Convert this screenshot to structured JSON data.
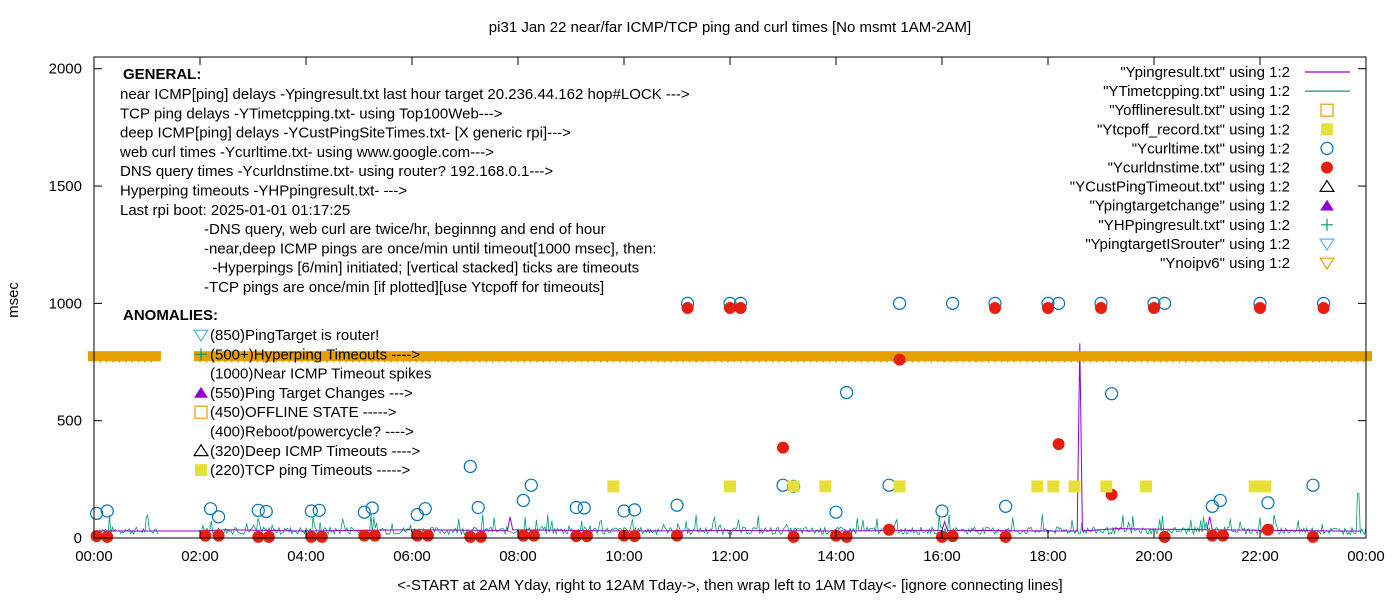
{
  "chart_data": {
    "type": "scatter",
    "title": "pi31 Jan 22  near/far ICMP/TCP ping and curl times [No msmt 1AM-2AM]",
    "xlabel": "<-START at 2AM Yday, right to 12AM Tday->, then wrap left to 1AM Tday<- [ignore connecting lines]",
    "ylabel": "msec",
    "xlim": [
      0,
      24
    ],
    "ylim": [
      0,
      2050
    ],
    "x_ticks": [
      "00:00",
      "02:00",
      "04:00",
      "06:00",
      "08:00",
      "10:00",
      "12:00",
      "14:00",
      "16:00",
      "18:00",
      "20:00",
      "22:00",
      "00:00"
    ],
    "y_ticks": [
      0,
      500,
      1000,
      1500,
      2000
    ],
    "legend_position": "top-right",
    "legend": [
      {
        "label": "\"Ypingresult.txt\" using 1:2",
        "kind": "line",
        "color": "#9400d3"
      },
      {
        "label": "\"YTimetcpping.txt\" using 1:2",
        "kind": "line",
        "color": "#009e73"
      },
      {
        "label": "\"Yofflineresult.txt\" using 1:2",
        "kind": "open-square",
        "color": "#e69f00"
      },
      {
        "label": "\"Ytcpoff_record.txt\" using 1:2",
        "kind": "filled-square",
        "color": "#e8e03a"
      },
      {
        "label": "\"Ycurltime.txt\" using 1:2",
        "kind": "open-circle",
        "color": "#0072b2"
      },
      {
        "label": "\"Ycurldnstime.txt\" using 1:2",
        "kind": "filled-circle",
        "color": "#e51e10"
      },
      {
        "label": "\"YCustPingTimeout.txt\" using 1:2",
        "kind": "open-triangle",
        "color": "#000000"
      },
      {
        "label": "\"Ypingtargetchange\" using 1:2",
        "kind": "filled-triangle",
        "color": "#9400d3"
      },
      {
        "label": "\"YHPpingresult.txt\" using 1:2",
        "kind": "plus",
        "color": "#009e73"
      },
      {
        "label": "\"YpingtargetISrouter\" using 1:2",
        "kind": "open-down-triangle",
        "color": "#56b4e9"
      },
      {
        "label": "\"Ynoipv6\" using 1:2",
        "kind": "open-down-triangle",
        "color": "#e69f00"
      }
    ],
    "annotations": {
      "general_header": "GENERAL:",
      "general_lines": [
        "near ICMP[ping] delays -Ypingresult.txt last hour target 20.236.44.162 hop#LOCK --->",
        "TCP ping delays -YTimetcpping.txt- using Top100Web--->",
        "deep ICMP[ping] delays -YCustPingSiteTimes.txt- [X generic rpi]--->",
        "web curl times -Ycurltime.txt- using www.google.com--->",
        "DNS query times -Ycurldnstime.txt- using router? 192.168.0.1--->",
        "Hyperping timeouts -YHPpingresult.txt- --->",
        "Last rpi boot: 2025-01-01 01:17:25"
      ],
      "general_notes": [
        "-DNS query, web curl are twice/hr, beginnng and end of hour",
        "-near,deep ICMP pings are once/min until timeout[1000 msec], then:",
        "  -Hyperpings [6/min] initiated; [vertical stacked] ticks are timeouts",
        "-TCP pings are once/min [if plotted][use Ytcpoff for timeouts]"
      ],
      "anomalies_header": "ANOMALIES:",
      "anomalies": [
        {
          "text": "(850)PingTarget is router!",
          "marker": "open-down-triangle",
          "color": "#56b4e9"
        },
        {
          "text": "(500+)Hyperping Timeouts ---->",
          "marker": "plus",
          "color": "#009e73"
        },
        {
          "text": "(1000)Near ICMP Timeout spikes",
          "marker": "none",
          "color": "#000000"
        },
        {
          "text": "(550)Ping Target Changes --->",
          "marker": "filled-triangle",
          "color": "#9400d3"
        },
        {
          "text": "(450)OFFLINE STATE ----->",
          "marker": "open-square",
          "color": "#e69f00"
        },
        {
          "text": "(400)Reboot/powercycle? ---->",
          "marker": "none",
          "color": "#000000"
        },
        {
          "text": "(320)Deep ICMP Timeouts ---->",
          "marker": "open-triangle",
          "color": "#000000"
        },
        {
          "text": "(220)TCP ping Timeouts ----->",
          "marker": "filled-square",
          "color": "#e8e03a"
        }
      ]
    },
    "series": [
      {
        "name": "\"Ycurltime.txt\" using 1:2",
        "marker": "open-circle",
        "color": "#0072b2",
        "points": [
          [
            0.05,
            105
          ],
          [
            0.25,
            115
          ],
          [
            2.2,
            125
          ],
          [
            2.35,
            90
          ],
          [
            3.1,
            118
          ],
          [
            3.25,
            113
          ],
          [
            4.1,
            115
          ],
          [
            4.25,
            118
          ],
          [
            5.1,
            110
          ],
          [
            5.25,
            128
          ],
          [
            6.1,
            100
          ],
          [
            6.25,
            125
          ],
          [
            7.1,
            305
          ],
          [
            7.25,
            130
          ],
          [
            8.1,
            160
          ],
          [
            8.25,
            225
          ],
          [
            9.1,
            130
          ],
          [
            9.25,
            128
          ],
          [
            10.0,
            115
          ],
          [
            10.2,
            120
          ],
          [
            11.0,
            140
          ],
          [
            11.2,
            1000
          ],
          [
            12.0,
            1000
          ],
          [
            12.2,
            1000
          ],
          [
            13.0,
            225
          ],
          [
            13.2,
            220
          ],
          [
            14.0,
            110
          ],
          [
            14.2,
            620
          ],
          [
            15.0,
            225
          ],
          [
            15.2,
            1000
          ],
          [
            16.0,
            115
          ],
          [
            16.2,
            1000
          ],
          [
            17.0,
            1000
          ],
          [
            17.2,
            135
          ],
          [
            18.0,
            1000
          ],
          [
            18.2,
            1000
          ],
          [
            19.0,
            1000
          ],
          [
            19.2,
            615
          ],
          [
            20.0,
            1000
          ],
          [
            20.2,
            1000
          ],
          [
            21.1,
            135
          ],
          [
            21.25,
            160
          ],
          [
            22.0,
            1000
          ],
          [
            22.15,
            150
          ],
          [
            23.0,
            225
          ],
          [
            23.2,
            1000
          ]
        ]
      },
      {
        "name": "\"Ycurldnstime.txt\" using 1:2",
        "marker": "filled-circle",
        "color": "#e51e10",
        "points": [
          [
            0.05,
            8
          ],
          [
            0.25,
            5
          ],
          [
            2.1,
            10
          ],
          [
            2.35,
            10
          ],
          [
            3.1,
            5
          ],
          [
            3.3,
            5
          ],
          [
            4.1,
            5
          ],
          [
            4.3,
            5
          ],
          [
            5.1,
            10
          ],
          [
            5.3,
            10
          ],
          [
            6.1,
            10
          ],
          [
            6.3,
            10
          ],
          [
            7.1,
            5
          ],
          [
            7.3,
            5
          ],
          [
            8.1,
            10
          ],
          [
            8.3,
            10
          ],
          [
            9.1,
            8
          ],
          [
            9.3,
            8
          ],
          [
            10.0,
            10
          ],
          [
            10.2,
            8
          ],
          [
            11.0,
            10
          ],
          [
            11.2,
            980
          ],
          [
            12.0,
            980
          ],
          [
            12.2,
            980
          ],
          [
            13.0,
            385
          ],
          [
            13.2,
            5
          ],
          [
            14.0,
            10
          ],
          [
            14.2,
            5
          ],
          [
            15.0,
            35
          ],
          [
            15.2,
            760
          ],
          [
            16.0,
            5
          ],
          [
            16.2,
            8
          ],
          [
            17.0,
            980
          ],
          [
            17.2,
            5
          ],
          [
            18.0,
            980
          ],
          [
            18.2,
            400
          ],
          [
            19.0,
            980
          ],
          [
            19.2,
            185
          ],
          [
            20.0,
            980
          ],
          [
            20.2,
            5
          ],
          [
            21.1,
            10
          ],
          [
            21.3,
            10
          ],
          [
            22.0,
            980
          ],
          [
            22.15,
            35
          ],
          [
            23.0,
            5
          ],
          [
            23.2,
            980
          ]
        ]
      },
      {
        "name": "\"Ytcpoff_record.txt\" using 1:2",
        "marker": "filled-square",
        "color": "#e8e03a",
        "points": [
          [
            9.8,
            220
          ],
          [
            12.0,
            220
          ],
          [
            13.2,
            220
          ],
          [
            13.8,
            220
          ],
          [
            15.2,
            220
          ],
          [
            17.8,
            220
          ],
          [
            18.1,
            220
          ],
          [
            18.5,
            220
          ],
          [
            19.1,
            220
          ],
          [
            19.85,
            220
          ],
          [
            21.9,
            220
          ],
          [
            22.1,
            220
          ]
        ]
      },
      {
        "name": "\"Ynoipv6\" using 1:2",
        "marker": "open-down-triangle",
        "color": "#e69f00",
        "points": [],
        "bands": [
          [
            0.0,
            1.15,
            775
          ],
          [
            2.0,
            24.0,
            775
          ]
        ]
      },
      {
        "name": "\"Ypingresult.txt\" using 1:2",
        "marker": "line",
        "color": "#9400d3",
        "points": [
          [
            0,
            30
          ],
          [
            2.0,
            30
          ],
          [
            2.5,
            35
          ],
          [
            4.0,
            30
          ],
          [
            6.0,
            35
          ],
          [
            7.8,
            32
          ],
          [
            7.85,
            90
          ],
          [
            7.9,
            35
          ],
          [
            10.0,
            30
          ],
          [
            12.0,
            32
          ],
          [
            14.0,
            30
          ],
          [
            16.0,
            33
          ],
          [
            16.05,
            70
          ],
          [
            16.1,
            33
          ],
          [
            18.0,
            30
          ],
          [
            18.55,
            30
          ],
          [
            18.6,
            830
          ],
          [
            18.65,
            30
          ],
          [
            19.3,
            40
          ],
          [
            21.0,
            35
          ],
          [
            21.05,
            90
          ],
          [
            21.1,
            35
          ],
          [
            23.5,
            30
          ],
          [
            23.9,
            30
          ]
        ]
      },
      {
        "name": "\"YTimetcpping.txt\" using 1:2",
        "marker": "line",
        "color": "#009e73",
        "points": [],
        "noise": {
          "base": 15,
          "amp": 40,
          "start": 0.0,
          "end": 24.0
        }
      },
      {
        "name": "\"YHPpingresult.txt\" using 1:2",
        "marker": "plus",
        "color": "#009e73",
        "points": []
      }
    ]
  }
}
